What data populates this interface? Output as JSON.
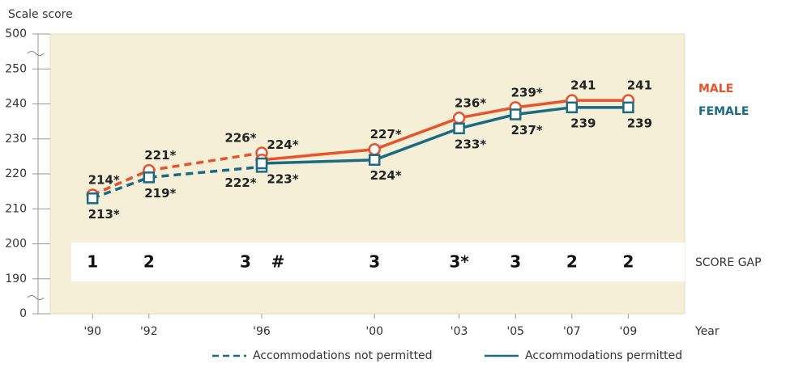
{
  "chart_data": {
    "type": "line",
    "y_label": "Scale score",
    "x_label": "Year",
    "x": [
      1990,
      1992,
      1996,
      1996,
      2000,
      2003,
      2005,
      2007,
      2009
    ],
    "xlim": [
      1988.5,
      2011
    ],
    "xticks": [
      {
        "value": 1990,
        "label": "'90"
      },
      {
        "value": 1992,
        "label": "'92"
      },
      {
        "value": 1996,
        "label": "'96"
      },
      {
        "value": 2000,
        "label": "'00"
      },
      {
        "value": 2003,
        "label": "'03"
      },
      {
        "value": 2005,
        "label": "'05"
      },
      {
        "value": 2007,
        "label": "'07"
      },
      {
        "value": 2009,
        "label": "'09"
      }
    ],
    "ylim": [
      0,
      500
    ],
    "yticks": [
      0,
      190,
      200,
      210,
      220,
      230,
      240,
      250,
      500
    ],
    "axis_break": true,
    "series": [
      {
        "name": "MALE",
        "color": "#e8532b",
        "values": [
          214,
          221,
          226,
          224,
          227,
          236,
          239,
          241,
          241
        ],
        "value_labels": [
          "214*",
          "221*",
          "226*",
          "224*",
          "227*",
          "236*",
          "239*",
          "241",
          "241"
        ]
      },
      {
        "name": "FEMALE",
        "color": "#1a6a84",
        "values": [
          213,
          219,
          222,
          223,
          224,
          233,
          237,
          239,
          239
        ],
        "value_labels": [
          "213*",
          "219*",
          "222*",
          "223*",
          "224*",
          "233*",
          "237*",
          "239",
          "239"
        ]
      }
    ],
    "line_styles": [
      {
        "name": "Accommodations not permitted",
        "dashed": true
      },
      {
        "name": "Accommodations permitted",
        "dashed": false
      }
    ],
    "point_style": [
      0,
      0,
      0,
      1,
      1,
      1,
      1,
      1,
      1
    ],
    "score_gap": {
      "label": "SCORE GAP",
      "values": [
        "1",
        "2",
        "3",
        "#",
        "3",
        "3*",
        "3",
        "2",
        "2"
      ]
    }
  }
}
